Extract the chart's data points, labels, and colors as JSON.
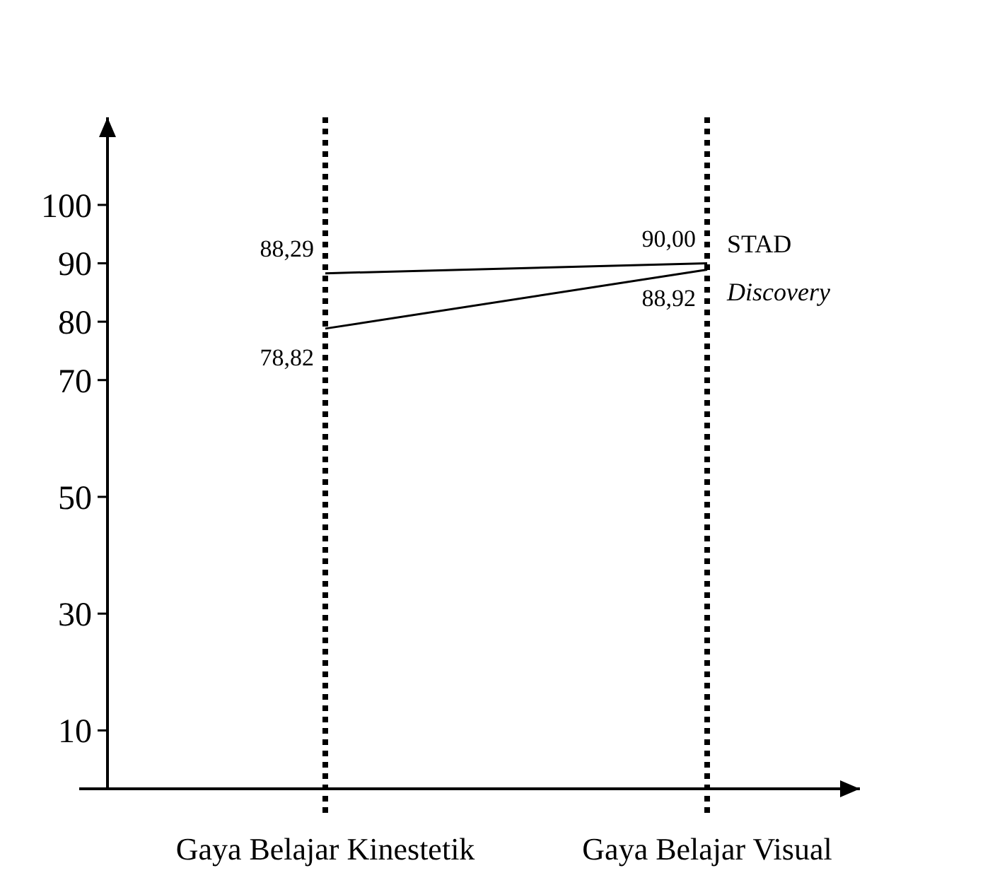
{
  "chart_data": {
    "type": "line",
    "categories": [
      "Gaya Belajar Kinestetik",
      "Gaya Belajar Visual"
    ],
    "series": [
      {
        "name": "Discovery",
        "color": "#000000",
        "values": [
          78.82,
          88.92
        ],
        "value_labels": [
          "78,82",
          "88,92"
        ]
      },
      {
        "name": "STAD",
        "color": "#000000",
        "values": [
          88.29,
          90.0
        ],
        "value_labels": [
          "88,29",
          "90,00"
        ]
      }
    ],
    "ylim": [
      0,
      115
    ],
    "yticks": [
      10,
      30,
      50,
      70,
      80,
      90,
      100
    ],
    "grid": false,
    "marker": "none",
    "line_style": "solid",
    "ref_lines": [
      {
        "axis": "x",
        "value": "Gaya Belajar Kinestetik",
        "line_style": "dotted",
        "color": "#000000"
      },
      {
        "axis": "x",
        "value": "Gaya Belajar Visual",
        "line_style": "dotted",
        "color": "#000000"
      }
    ]
  }
}
